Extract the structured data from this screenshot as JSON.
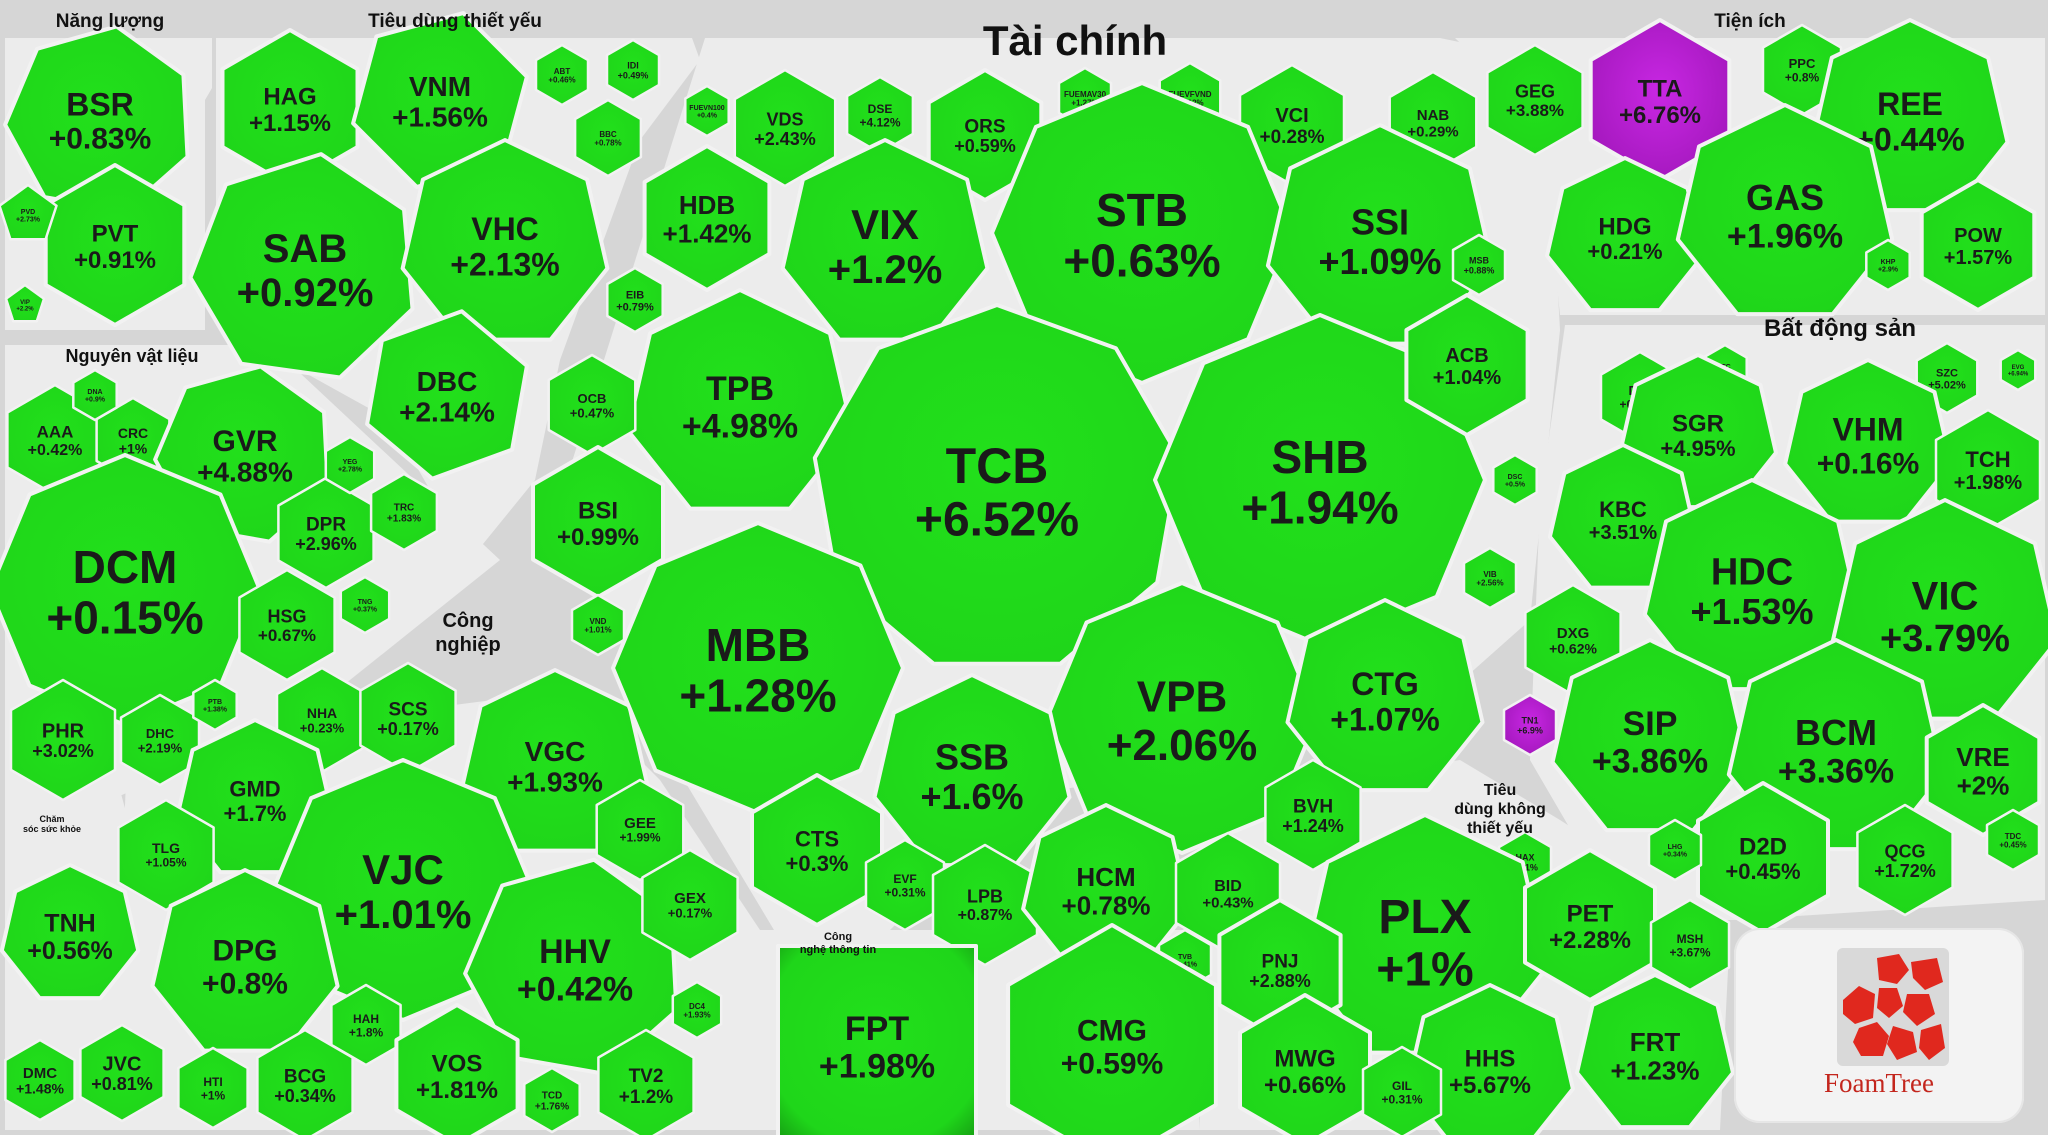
{
  "sectors": {
    "nang_luong": "Năng lượng",
    "tieu_dung_thiet_yeu": "Tiêu dùng thiết yếu",
    "tai_chinh": "Tài chính",
    "tien_ich": "Tiện ích",
    "nguyen_vat_lieu": "Nguyên vật liệu",
    "bat_dong_san": "Bất động sản",
    "cong_nghiep_1": "Công",
    "cong_nghiep_2": "nghiệp",
    "cham_soc_1": "Chăm",
    "cham_soc_2": "sóc sức khỏe",
    "tdkty_1": "Tiêu",
    "tdkty_2": "dùng không",
    "tdkty_3": "thiết yếu",
    "cntt_1": "Công",
    "cntt_2": "nghệ thông tin"
  },
  "colors": {
    "up": "#22dd1c",
    "up_dark": "#159a12",
    "ceiling": "#c21fdc",
    "gap": "#d6d6d6"
  },
  "logo": {
    "brand": "FoamTree"
  },
  "stocks": [
    {
      "t": "BSR",
      "c": "+0.83%"
    },
    {
      "t": "PVT",
      "c": "+0.91%"
    },
    {
      "t": "PVD",
      "c": "+2.73%"
    },
    {
      "t": "VIP",
      "c": "+2.2%"
    },
    {
      "t": "HAG",
      "c": "+1.15%"
    },
    {
      "t": "VNM",
      "c": "+1.56%"
    },
    {
      "t": "ABT",
      "c": "+0.46%"
    },
    {
      "t": "IDI",
      "c": "+0.49%"
    },
    {
      "t": "SAB",
      "c": "+0.92%"
    },
    {
      "t": "VHC",
      "c": "+2.13%"
    },
    {
      "t": "BBC",
      "c": "+0.78%"
    },
    {
      "t": "DBC",
      "c": "+2.14%"
    },
    {
      "t": "AAA",
      "c": "+0.42%"
    },
    {
      "t": "CRC",
      "c": "+1%"
    },
    {
      "t": "GVR",
      "c": "+4.88%"
    },
    {
      "t": "DCM",
      "c": "+0.15%"
    },
    {
      "t": "DPR",
      "c": "+2.96%"
    },
    {
      "t": "YEG",
      "c": "+2.78%"
    },
    {
      "t": "TRC",
      "c": "+1.83%"
    },
    {
      "t": "HSG",
      "c": "+0.67%"
    },
    {
      "t": "PHR",
      "c": "+3.02%"
    },
    {
      "t": "DHC",
      "c": "+2.19%"
    },
    {
      "t": "DNA",
      "c": "+0.9%"
    },
    {
      "t": "TNG",
      "c": "+0.37%"
    },
    {
      "t": "PTB",
      "c": "+1.38%"
    },
    {
      "t": "NHA",
      "c": "+0.23%"
    },
    {
      "t": "SCS",
      "c": "+0.17%"
    },
    {
      "t": "VGC",
      "c": "+1.93%"
    },
    {
      "t": "GMD",
      "c": "+1.7%"
    },
    {
      "t": "TLG",
      "c": "+1.05%"
    },
    {
      "t": "VJC",
      "c": "+1.01%"
    },
    {
      "t": "GEE",
      "c": "+1.99%"
    },
    {
      "t": "DPG",
      "c": "+0.8%"
    },
    {
      "t": "HHV",
      "c": "+0.42%"
    },
    {
      "t": "GEX",
      "c": "+0.17%"
    },
    {
      "t": "HAH",
      "c": "+1.8%"
    },
    {
      "t": "BCG",
      "c": "+0.34%"
    },
    {
      "t": "VOS",
      "c": "+1.81%"
    },
    {
      "t": "TCD",
      "c": "+1.76%"
    },
    {
      "t": "TV2",
      "c": "+1.2%"
    },
    {
      "t": "HTI",
      "c": "+1%"
    },
    {
      "t": "DC4",
      "c": "+1.93%"
    },
    {
      "t": "TNH",
      "c": "+0.56%"
    },
    {
      "t": "DMC",
      "c": "+1.48%"
    },
    {
      "t": "JVC",
      "c": "+0.81%"
    },
    {
      "t": "FUEVN100",
      "c": "+0.4%"
    },
    {
      "t": "VDS",
      "c": "+2.43%"
    },
    {
      "t": "DSE",
      "c": "+4.12%"
    },
    {
      "t": "ORS",
      "c": "+0.59%"
    },
    {
      "t": "FUEMAV30",
      "c": "+1.27%"
    },
    {
      "t": "FUEVFVND",
      "c": "+2.12%"
    },
    {
      "t": "VCI",
      "c": "+0.28%"
    },
    {
      "t": "NAB",
      "c": "+0.29%"
    },
    {
      "t": "HDB",
      "c": "+1.42%"
    },
    {
      "t": "VIX",
      "c": "+1.2%"
    },
    {
      "t": "STB",
      "c": "+0.63%"
    },
    {
      "t": "SSI",
      "c": "+1.09%"
    },
    {
      "t": "EIB",
      "c": "+0.79%"
    },
    {
      "t": "MSB",
      "c": "+0.88%"
    },
    {
      "t": "TPB",
      "c": "+4.98%"
    },
    {
      "t": "TCB",
      "c": "+6.52%"
    },
    {
      "t": "SHB",
      "c": "+1.94%"
    },
    {
      "t": "ACB",
      "c": "+1.04%"
    },
    {
      "t": "OCB",
      "c": "+0.47%"
    },
    {
      "t": "BSI",
      "c": "+0.99%"
    },
    {
      "t": "DSC",
      "c": "+0.5%"
    },
    {
      "t": "VIB",
      "c": "+2.56%"
    },
    {
      "t": "VND",
      "c": "+1.01%"
    },
    {
      "t": "MBB",
      "c": "+1.28%"
    },
    {
      "t": "VPB",
      "c": "+2.06%"
    },
    {
      "t": "CTG",
      "c": "+1.07%"
    },
    {
      "t": "SSB",
      "c": "+1.6%"
    },
    {
      "t": "BVH",
      "c": "+1.24%"
    },
    {
      "t": "CTS",
      "c": "+0.3%"
    },
    {
      "t": "EVF",
      "c": "+0.31%"
    },
    {
      "t": "LPB",
      "c": "+0.87%"
    },
    {
      "t": "HCM",
      "c": "+0.78%"
    },
    {
      "t": "BID",
      "c": "+0.43%"
    },
    {
      "t": "TVB",
      "c": "+1.41%"
    },
    {
      "t": "FPT",
      "c": "+1.98%"
    },
    {
      "t": "CMG",
      "c": "+0.59%"
    },
    {
      "t": "GEG",
      "c": "+3.88%"
    },
    {
      "t": "TTA",
      "c": "+6.76%"
    },
    {
      "t": "PPC",
      "c": "+0.8%"
    },
    {
      "t": "REE",
      "c": "+0.44%"
    },
    {
      "t": "HDG",
      "c": "+0.21%"
    },
    {
      "t": "GAS",
      "c": "+1.96%"
    },
    {
      "t": "POW",
      "c": "+1.57%"
    },
    {
      "t": "KHP",
      "c": "+2.9%"
    },
    {
      "t": "DIG",
      "c": "+0.65%"
    },
    {
      "t": "ITC",
      "c": "+6.85%"
    },
    {
      "t": "SZC",
      "c": "+5.02%"
    },
    {
      "t": "EVG",
      "c": "+6.94%"
    },
    {
      "t": "SGR",
      "c": "+4.95%"
    },
    {
      "t": "VHM",
      "c": "+0.16%"
    },
    {
      "t": "TCH",
      "c": "+1.98%"
    },
    {
      "t": "KBC",
      "c": "+3.51%"
    },
    {
      "t": "HDC",
      "c": "+1.53%"
    },
    {
      "t": "VIC",
      "c": "+3.79%"
    },
    {
      "t": "DXG",
      "c": "+0.62%"
    },
    {
      "t": "TN1",
      "c": "+6.9%"
    },
    {
      "t": "SIP",
      "c": "+3.86%"
    },
    {
      "t": "BCM",
      "c": "+3.36%"
    },
    {
      "t": "VRE",
      "c": "+2%"
    },
    {
      "t": "D2D",
      "c": "+0.45%"
    },
    {
      "t": "QCG",
      "c": "+1.72%"
    },
    {
      "t": "LHG",
      "c": "+0.34%"
    },
    {
      "t": "TDC",
      "c": "+0.45%"
    },
    {
      "t": "HAX",
      "c": "+1.1%"
    },
    {
      "t": "PLX",
      "c": "+1%"
    },
    {
      "t": "PET",
      "c": "+2.28%"
    },
    {
      "t": "PNJ",
      "c": "+2.88%"
    },
    {
      "t": "MSH",
      "c": "+3.67%"
    },
    {
      "t": "MWG",
      "c": "+0.66%"
    },
    {
      "t": "HHS",
      "c": "+5.67%"
    },
    {
      "t": "FRT",
      "c": "+1.23%"
    },
    {
      "t": "GIL",
      "c": "+0.31%"
    }
  ]
}
